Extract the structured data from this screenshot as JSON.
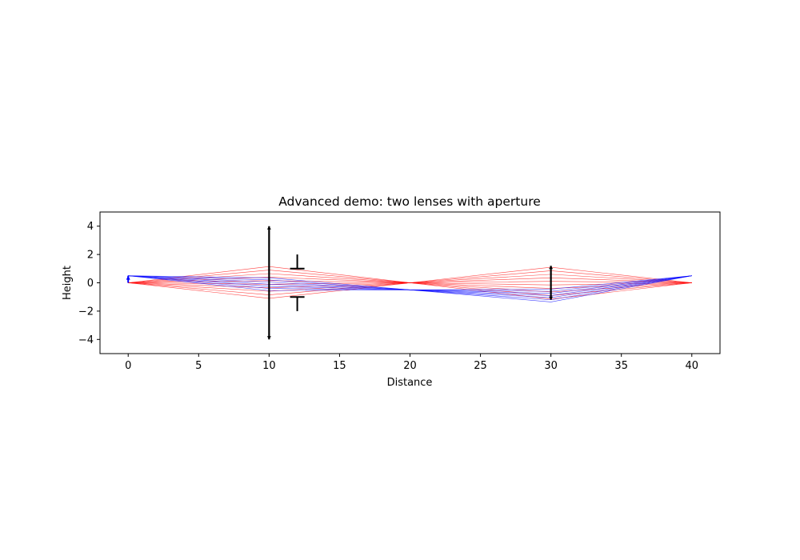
{
  "chart_data": {
    "type": "line",
    "title": "Advanced demo: two lenses with aperture",
    "xlabel": "Distance",
    "ylabel": "Height",
    "xlim": [
      -2,
      42
    ],
    "ylim": [
      -5,
      5
    ],
    "grid": false,
    "x_ticks": [
      0,
      5,
      10,
      15,
      20,
      25,
      30,
      35,
      40
    ],
    "y_ticks": [
      4,
      2,
      0,
      -2,
      -4
    ],
    "x_tick_labels": [
      "0",
      "5",
      "10",
      "15",
      "20",
      "25",
      "30",
      "35",
      "40"
    ],
    "y_tick_labels": [
      "4",
      "2",
      "0",
      "−2",
      "−4"
    ],
    "elements": {
      "lenses": [
        {
          "x": 10,
          "half_height": 4.0
        },
        {
          "x": 30,
          "half_height": 1.2
        }
      ],
      "aperture": {
        "x": 12,
        "inner": 1.0,
        "outer": 2.0
      },
      "object": {
        "x": 0,
        "top": 0.5,
        "bottom": 0
      }
    },
    "ray_groups": [
      {
        "color": "#ff0000",
        "start_x": 0,
        "start_y": 0,
        "lens1_heights": [
          -1.1,
          -0.85,
          -0.6,
          -0.35,
          -0.1,
          0.15,
          0.4,
          0.65,
          0.9,
          1.15
        ],
        "focus_x": 20,
        "focus_y": 0,
        "end_x": 40,
        "end_y": 0
      },
      {
        "color": "#0000ff",
        "start_x": 0,
        "start_y": 0.5,
        "lens1_heights": [
          -0.55,
          -0.4,
          -0.25,
          -0.1,
          0.05,
          0.2,
          0.35
        ],
        "focus_x": 20,
        "focus_y": -0.5,
        "end_x": 40,
        "end_y": 0.5
      }
    ]
  }
}
